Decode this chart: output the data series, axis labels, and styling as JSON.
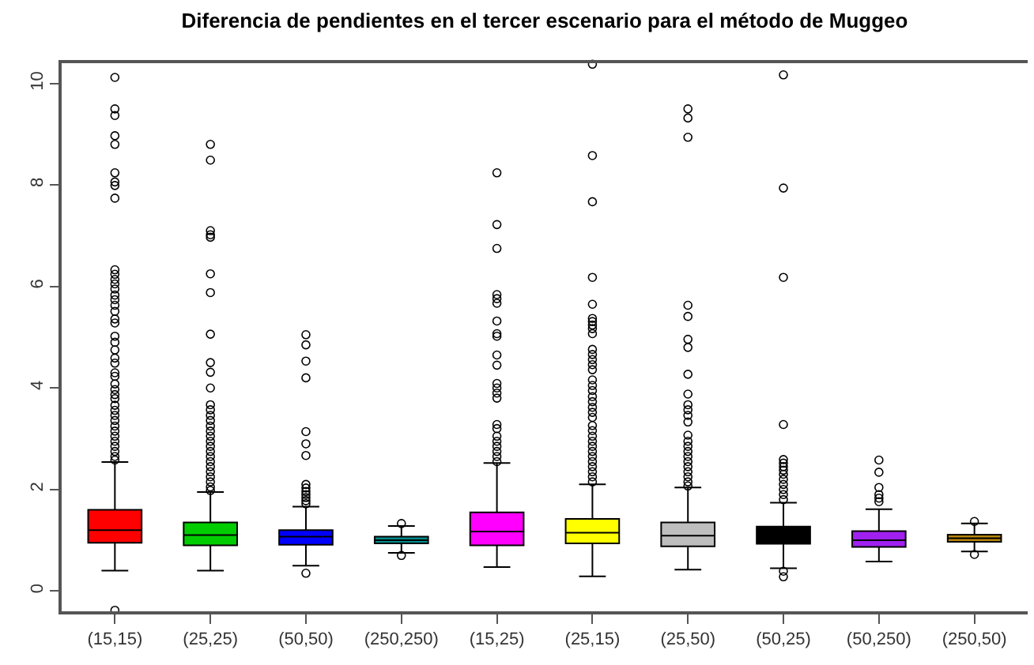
{
  "chart_data": {
    "type": "box",
    "title": "Diferencia de pendientes en el tercer escenario para el método de Muggeo",
    "categories": [
      "(15,15)",
      "(25,25)",
      "(50,50)",
      "(250,250)",
      "(15,25)",
      "(25,15)",
      "(25,50)",
      "(50,25)",
      "(50,250)",
      "(250,50)"
    ],
    "colors": [
      "#ff0000",
      "#00cd00",
      "#0000ff",
      "#008b8b",
      "#ff00ff",
      "#ffff00",
      "#bebebe",
      "#000000",
      "#a020f0",
      "#b8860b"
    ],
    "boxes": [
      {
        "low": 0.4,
        "q1": 0.95,
        "median": 1.2,
        "q3": 1.6,
        "high": 2.54,
        "outliers": [
          10.12,
          9.5,
          9.37,
          8.97,
          8.8,
          8.24,
          8.06,
          7.99,
          7.74,
          6.33,
          6.24,
          6.14,
          6.05,
          5.95,
          5.83,
          5.74,
          5.63,
          5.51,
          5.36,
          5.28,
          5.02,
          4.9,
          4.75,
          4.59,
          4.49,
          4.3,
          4.23,
          4.08,
          3.97,
          3.87,
          3.79,
          3.66,
          3.56,
          3.46,
          3.36,
          3.25,
          3.15,
          3.05,
          2.95,
          2.85,
          2.75,
          2.65,
          2.58,
          -0.38
        ]
      },
      {
        "low": 0.4,
        "q1": 0.9,
        "median": 1.1,
        "q3": 1.35,
        "high": 1.95,
        "outliers": [
          8.8,
          8.49,
          7.1,
          7.02,
          6.97,
          6.25,
          5.88,
          5.06,
          4.5,
          4.31,
          4.0,
          3.67,
          3.57,
          3.46,
          3.36,
          3.25,
          3.15,
          3.05,
          2.95,
          2.85,
          2.75,
          2.65,
          2.55,
          2.45,
          2.35,
          2.25,
          2.15,
          2.05,
          1.98
        ]
      },
      {
        "low": 0.5,
        "q1": 0.91,
        "median": 1.07,
        "q3": 1.2,
        "high": 1.66,
        "outliers": [
          5.05,
          4.85,
          4.53,
          4.2,
          3.14,
          2.9,
          2.67,
          2.1,
          2.03,
          1.96,
          1.9,
          1.84,
          1.78,
          1.72,
          0.35
        ]
      },
      {
        "low": 0.75,
        "q1": 0.94,
        "median": 1.0,
        "q3": 1.07,
        "high": 1.28,
        "outliers": [
          1.33,
          0.7
        ]
      },
      {
        "low": 0.47,
        "q1": 0.9,
        "median": 1.17,
        "q3": 1.55,
        "high": 2.52,
        "outliers": [
          8.24,
          7.22,
          6.75,
          5.84,
          5.76,
          5.67,
          5.32,
          5.07,
          5.02,
          4.65,
          4.45,
          4.09,
          4.0,
          3.9,
          3.8,
          3.28,
          3.2,
          3.05,
          2.95,
          2.85,
          2.75,
          2.65,
          2.55
        ]
      },
      {
        "low": 0.29,
        "q1": 0.94,
        "median": 1.15,
        "q3": 1.42,
        "high": 2.1,
        "outliers": [
          10.38,
          8.58,
          7.67,
          6.18,
          5.65,
          5.37,
          5.31,
          5.24,
          5.17,
          5.07,
          4.76,
          4.66,
          4.56,
          4.46,
          4.36,
          4.16,
          4.05,
          3.95,
          3.83,
          3.73,
          3.62,
          3.52,
          3.42,
          3.26,
          3.16,
          3.05,
          2.95,
          2.85,
          2.75,
          2.65,
          2.55,
          2.45,
          2.35,
          2.25,
          2.15
        ]
      },
      {
        "low": 0.42,
        "q1": 0.88,
        "median": 1.09,
        "q3": 1.35,
        "high": 2.04,
        "outliers": [
          9.5,
          9.32,
          8.94,
          5.63,
          5.41,
          4.96,
          4.8,
          4.27,
          3.88,
          3.67,
          3.57,
          3.46,
          3.33,
          3.07,
          2.95,
          2.85,
          2.75,
          2.65,
          2.55,
          2.45,
          2.35,
          2.25,
          2.15,
          2.07
        ]
      },
      {
        "low": 0.45,
        "q1": 0.93,
        "median": 1.05,
        "q3": 1.27,
        "high": 1.74,
        "outliers": [
          10.17,
          7.94,
          6.18,
          3.28,
          2.59,
          2.52,
          2.45,
          2.38,
          2.3,
          2.2,
          2.1,
          2.0,
          1.9,
          1.8,
          0.39,
          0.28
        ]
      },
      {
        "low": 0.58,
        "q1": 0.87,
        "median": 1.0,
        "q3": 1.18,
        "high": 1.61,
        "outliers": [
          2.58,
          2.34,
          2.04,
          1.9,
          1.83,
          1.76
        ]
      },
      {
        "low": 0.78,
        "q1": 0.97,
        "median": 1.04,
        "q3": 1.11,
        "high": 1.33,
        "outliers": [
          1.37,
          0.72
        ]
      }
    ],
    "ylim": [
      -0.4,
      10.4
    ],
    "yticks": [
      0,
      2,
      4,
      6,
      8,
      10
    ],
    "marker": "circle"
  }
}
